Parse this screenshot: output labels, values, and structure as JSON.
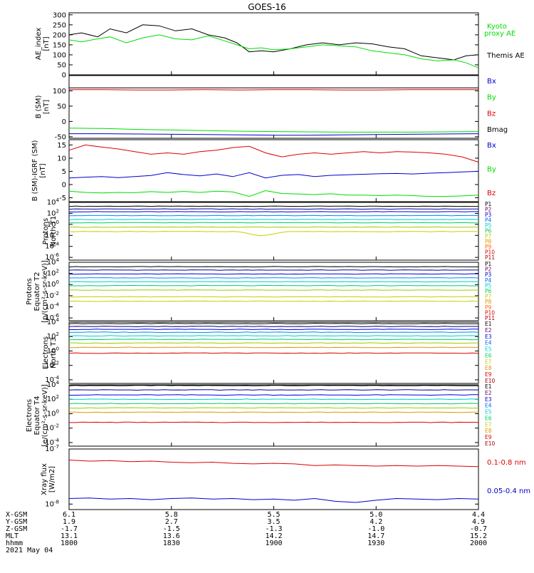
{
  "title": "GOES-16",
  "chart_data": [
    {
      "type": "line",
      "id": "ae",
      "ylabel": [
        "AE_index",
        "[nT]"
      ],
      "yticks": [
        0,
        50,
        100,
        150,
        200,
        250,
        300
      ],
      "ylim": [
        0,
        310
      ],
      "x": [
        0,
        0.03,
        0.07,
        0.1,
        0.14,
        0.18,
        0.22,
        0.26,
        0.3,
        0.34,
        0.38,
        0.41,
        0.44,
        0.47,
        0.5,
        0.54,
        0.58,
        0.62,
        0.66,
        0.7,
        0.74,
        0.78,
        0.82,
        0.86,
        0.9,
        0.94,
        0.97,
        1.0
      ],
      "series": [
        {
          "name": "Themis AE",
          "color": "#000000",
          "values": [
            200,
            210,
            190,
            230,
            210,
            250,
            245,
            220,
            230,
            200,
            185,
            160,
            115,
            120,
            115,
            130,
            150,
            160,
            150,
            160,
            155,
            140,
            130,
            95,
            85,
            75,
            95,
            100
          ]
        },
        {
          "name": "Kyoto proxy AE",
          "color": "#00dd00",
          "values": [
            175,
            165,
            180,
            190,
            160,
            185,
            200,
            180,
            175,
            195,
            170,
            150,
            130,
            135,
            125,
            130,
            140,
            150,
            145,
            140,
            120,
            110,
            100,
            80,
            70,
            75,
            60,
            35
          ]
        }
      ],
      "legend": [
        "Kyoto",
        "proxy AE",
        "Themis AE"
      ],
      "legend_colors": [
        "#00dd00",
        "#00dd00",
        "#000000"
      ]
    },
    {
      "type": "line",
      "id": "bsm",
      "ylabel": [
        "B (SM)",
        "[nT]"
      ],
      "yticks": [
        -50,
        0,
        50,
        100
      ],
      "ylim": [
        -55,
        150
      ],
      "series": [
        {
          "name": "Bx",
          "color": "#0000cc",
          "values": [
            -40,
            -40,
            -41,
            -42,
            -43,
            -44,
            -45,
            -45,
            -44,
            -43,
            -42,
            -41,
            -40
          ]
        },
        {
          "name": "By",
          "color": "#00dd00",
          "values": [
            -22,
            -23,
            -26,
            -28,
            -30,
            -32,
            -33,
            -34,
            -35,
            -35,
            -35,
            -34,
            -33
          ]
        },
        {
          "name": "Bz",
          "color": "#dd0000",
          "values": [
            104,
            104,
            103,
            103,
            104,
            103,
            104,
            104,
            103,
            103,
            104,
            104,
            104
          ]
        },
        {
          "name": "Bmag",
          "color": "#000000",
          "values": [
            110,
            110,
            110,
            110,
            110,
            110,
            110,
            110,
            110,
            110,
            110,
            110,
            110
          ]
        }
      ],
      "legend": [
        "Bx",
        "By",
        "Bz",
        "Bmag"
      ],
      "legend_colors": [
        "#0000cc",
        "#00dd00",
        "#dd0000",
        "#000000"
      ]
    },
    {
      "type": "line",
      "id": "bigrf",
      "ylabel": [
        "B (SM)-IGRF (SM)",
        "[nT]"
      ],
      "yticks": [
        -5,
        0,
        5,
        10,
        15
      ],
      "ylim": [
        -6.5,
        17
      ],
      "x": [
        0,
        0.04,
        0.08,
        0.12,
        0.16,
        0.2,
        0.24,
        0.28,
        0.32,
        0.36,
        0.4,
        0.44,
        0.48,
        0.52,
        0.56,
        0.6,
        0.64,
        0.68,
        0.72,
        0.76,
        0.8,
        0.84,
        0.88,
        0.92,
        0.96,
        1.0
      ],
      "series": [
        {
          "name": "Bx",
          "color": "#0000cc",
          "values": [
            2.5,
            2.8,
            3.0,
            2.6,
            3.0,
            3.4,
            4.5,
            3.8,
            3.3,
            4.0,
            3.0,
            4.5,
            2.5,
            3.5,
            3.8,
            3.0,
            3.5,
            3.7,
            3.9,
            4.1,
            4.2,
            4.0,
            4.3,
            4.5,
            4.8,
            5.0
          ]
        },
        {
          "name": "By",
          "color": "#00dd00",
          "values": [
            -2.5,
            -3.0,
            -3.2,
            -3.0,
            -3.1,
            -2.7,
            -3.0,
            -2.6,
            -3.0,
            -2.5,
            -2.8,
            -4.5,
            -2.3,
            -3.4,
            -3.6,
            -3.8,
            -3.5,
            -4.0,
            -4.0,
            -4.2,
            -4.0,
            -4.2,
            -4.5,
            -4.5,
            -4.3,
            -4.0
          ]
        },
        {
          "name": "Bz",
          "color": "#dd0000",
          "values": [
            13.0,
            15.0,
            14.2,
            13.5,
            12.5,
            11.5,
            12.0,
            11.5,
            12.5,
            13.0,
            14.0,
            14.5,
            12.0,
            10.5,
            11.5,
            12.0,
            11.5,
            12.0,
            12.5,
            12.0,
            12.5,
            12.3,
            12.0,
            11.5,
            10.5,
            8.5
          ]
        }
      ],
      "legend": [
        "Bx",
        "By",
        "Bz"
      ],
      "legend_colors": [
        "#0000cc",
        "#00dd00",
        "#dd0000"
      ]
    },
    {
      "type": "line",
      "id": "protons_t1",
      "ylog": true,
      "ylabel": [
        "Protons",
        "North T1"
      ],
      "ylim_exp": [
        -6.5,
        4
      ],
      "ytick_exps": [
        -6,
        -4,
        -2,
        0,
        2,
        4
      ],
      "levels": [
        3.3,
        2.8,
        2.3,
        1.6,
        0.9,
        0.3,
        -0.5,
        -1.3
      ],
      "series_colors": [
        "#000000",
        "#000099",
        "#0000dd",
        "#0088ff",
        "#00cccc",
        "#00cc66",
        "#99cc00",
        "#cccc00"
      ],
      "dips": [
        {
          "series": 7,
          "at": 0.47,
          "depth": 0.8
        }
      ],
      "legend": [
        "P1",
        "P2",
        "P3",
        "P4",
        "P5",
        "P6",
        "P7",
        "P8",
        "P9",
        "P10",
        "P11"
      ],
      "legend_colors": [
        "#000000",
        "#660066",
        "#0000cc",
        "#0066ff",
        "#00cccc",
        "#00cc66",
        "#cccc00",
        "#dd9900",
        "#ff6600",
        "#dd0000",
        "#aa0000"
      ]
    },
    {
      "type": "line",
      "id": "protons_t2",
      "ylog": true,
      "ylabel": [
        "Protons",
        "Equator T2",
        "[p/(cm²-s-sr-keV)]"
      ],
      "ylim_exp": [
        -6.5,
        4
      ],
      "ytick_exps": [
        -6,
        -4,
        -2,
        0,
        2,
        4
      ],
      "levels": [
        3.2,
        2.6,
        1.9,
        1.2,
        0.5,
        -0.2,
        -1.0,
        -2.2,
        -3.0
      ],
      "series_colors": [
        "#000000",
        "#000099",
        "#0000dd",
        "#0088ff",
        "#00cccc",
        "#00cc66",
        "#99cc00",
        "#cccc00",
        "#cccc00"
      ],
      "legend": [
        "P1",
        "P2",
        "P3",
        "P4",
        "P5",
        "P6",
        "P7",
        "P8",
        "P9",
        "P10",
        "P11"
      ],
      "legend_colors": [
        "#000000",
        "#660066",
        "#0000cc",
        "#0066ff",
        "#00cccc",
        "#00cc66",
        "#cccc00",
        "#dd9900",
        "#ff6600",
        "#dd0000",
        "#aa0000"
      ]
    },
    {
      "type": "line",
      "id": "electrons_t3",
      "ylog": true,
      "ylabel": [
        "Electrons",
        "North T3"
      ],
      "ylim_exp": [
        -4.5,
        4
      ],
      "ytick_exps": [
        -4,
        -2,
        0,
        2,
        4
      ],
      "levels": [
        3.8,
        3.4,
        3.0,
        2.6,
        2.1,
        1.6,
        1.1,
        0.5,
        -0.3
      ],
      "series_colors": [
        "#000000",
        "#000099",
        "#0000dd",
        "#0088ff",
        "#00cccc",
        "#00cc66",
        "#99cc00",
        "#dd9900",
        "#dd0000"
      ],
      "legend": [
        "E1",
        "E2",
        "E3",
        "E4",
        "E5",
        "E6",
        "E7",
        "E8",
        "E9",
        "E10"
      ],
      "legend_colors": [
        "#000000",
        "#660066",
        "#0000cc",
        "#0066ff",
        "#00cccc",
        "#00cc66",
        "#cccc00",
        "#dd9900",
        "#dd0000",
        "#aa0000"
      ]
    },
    {
      "type": "line",
      "id": "electrons_t4",
      "ylog": true,
      "ylabel": [
        "Electrons",
        "Equator T4",
        "[e/(cm²-s-sr-keV)]"
      ],
      "ylim_exp": [
        -4.5,
        4
      ],
      "ytick_exps": [
        -4,
        -2,
        0,
        2,
        4
      ],
      "levels": [
        3.9,
        3.3,
        2.6,
        2.0,
        1.4,
        0.8,
        0.2,
        -1.2
      ],
      "series_colors": [
        "#000000",
        "#000099",
        "#0000dd",
        "#00cccc",
        "#00cc66",
        "#99cc00",
        "#dd9900",
        "#dd0000"
      ],
      "legend": [
        "E1",
        "E2",
        "E3",
        "E4",
        "E5",
        "E6",
        "E7",
        "E8",
        "E9",
        "E10"
      ],
      "legend_colors": [
        "#000000",
        "#660066",
        "#0000cc",
        "#0066ff",
        "#00cccc",
        "#00cc66",
        "#cccc00",
        "#dd9900",
        "#dd0000",
        "#aa0000"
      ]
    },
    {
      "type": "line",
      "id": "xray",
      "ylog": true,
      "ylabel": [
        "Xray flux",
        "[W/m2]"
      ],
      "ylim_exp": [
        -8.1,
        -7
      ],
      "ytick_exps": [
        -8,
        -7
      ],
      "x": [
        0,
        0.05,
        0.1,
        0.15,
        0.2,
        0.25,
        0.3,
        0.35,
        0.4,
        0.45,
        0.5,
        0.55,
        0.6,
        0.65,
        0.7,
        0.75,
        0.8,
        0.85,
        0.9,
        0.95,
        1.0
      ],
      "series": [
        {
          "name": "0.1-0.8 nm",
          "color": "#dd0000",
          "values": [
            -7.2,
            -7.22,
            -7.21,
            -7.23,
            -7.22,
            -7.24,
            -7.25,
            -7.24,
            -7.26,
            -7.27,
            -7.26,
            -7.27,
            -7.3,
            -7.29,
            -7.3,
            -7.31,
            -7.3,
            -7.31,
            -7.3,
            -7.31,
            -7.32
          ]
        },
        {
          "name": "0.05-0.4 nm",
          "color": "#0000cc",
          "values": [
            -7.9,
            -7.89,
            -7.91,
            -7.9,
            -7.92,
            -7.9,
            -7.89,
            -7.91,
            -7.9,
            -7.92,
            -7.91,
            -7.93,
            -7.9,
            -7.95,
            -7.97,
            -7.93,
            -7.9,
            -7.91,
            -7.92,
            -7.9,
            -7.91
          ]
        }
      ],
      "legend": [
        "0.1-0.8 nm",
        "0.05-0.4 nm"
      ],
      "legend_colors": [
        "#dd0000",
        "#0000cc"
      ]
    }
  ],
  "footer": {
    "row_labels": [
      "X-GSM",
      "Y-GSM",
      "Z-GSM",
      "MLT",
      "hhmm",
      "2021 May 04"
    ],
    "columns": [
      [
        "6.1",
        "1.9",
        "-1.7",
        "13.1",
        "1800"
      ],
      [
        "5.8",
        "2.7",
        "-1.5",
        "13.6",
        "1830"
      ],
      [
        "5.5",
        "3.5",
        "-1.3",
        "14.2",
        "1900"
      ],
      [
        "5.0",
        "4.2",
        "-1.0",
        "14.7",
        "1930"
      ],
      [
        "4.4",
        "4.9",
        "-0.7",
        "15.2",
        "2000"
      ]
    ]
  }
}
